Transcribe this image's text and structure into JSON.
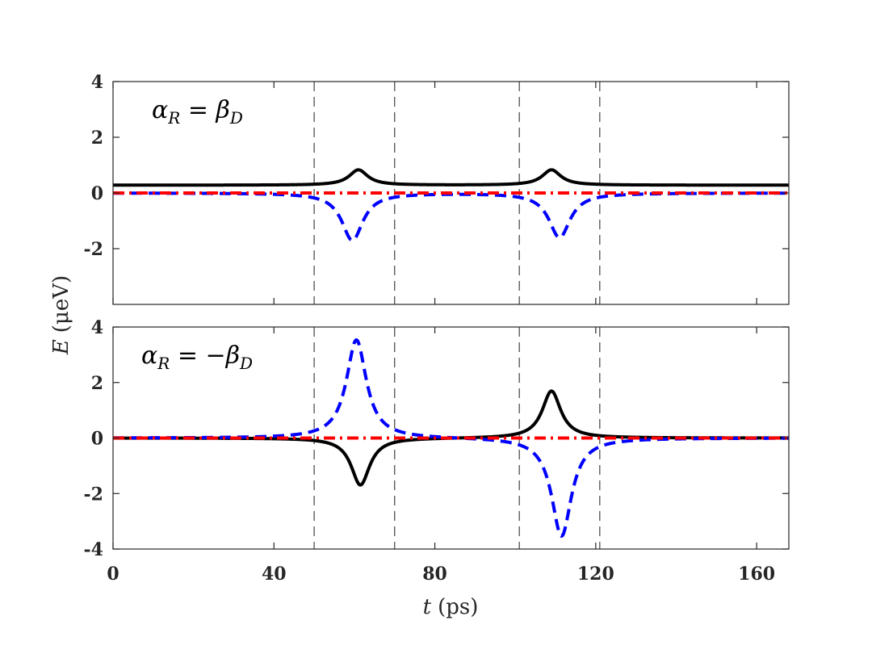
{
  "chart_data": {
    "type": "line",
    "shared_x": {
      "label_var": "t",
      "label_unit": "(ps)",
      "lim": [
        0,
        168
      ],
      "ticks": [
        0,
        40,
        80,
        120,
        160
      ]
    },
    "shared_y": {
      "label_var": "E",
      "label_unit": "(μeV)"
    },
    "vlines": [
      50,
      70,
      101,
      121
    ],
    "panels": [
      {
        "annotation": "αR = βD",
        "ylim": [
          -4,
          4
        ],
        "yticks": [
          -2,
          0,
          2,
          4
        ],
        "series": [
          {
            "name": "solid",
            "color": "#000000",
            "dash": "solid",
            "baseline": 0.28,
            "pulses": [
              {
                "amp": 0.55,
                "center": 61,
                "width": 2.8
              },
              {
                "amp": 0.55,
                "center": 109,
                "width": 2.8
              }
            ]
          },
          {
            "name": "dashed",
            "color": "#0000ff",
            "dash": "dashed",
            "baseline": 0,
            "pulses": [
              {
                "amp": -1.7,
                "center": 59.5,
                "width": 3.2
              },
              {
                "amp": -1.6,
                "center": 111,
                "width": 3.2
              }
            ]
          },
          {
            "name": "dash-dot",
            "color": "#ff0000",
            "dash": "dashdot",
            "baseline": 0,
            "pulses": []
          }
        ]
      },
      {
        "annotation": "αR = −βD",
        "ylim": [
          -4,
          4
        ],
        "yticks": [
          -4,
          -2,
          0,
          2,
          4
        ],
        "series": [
          {
            "name": "solid",
            "color": "#000000",
            "dash": "solid",
            "baseline": 0,
            "pulses": [
              {
                "amp": -1.7,
                "center": 61.5,
                "width": 2.8
              },
              {
                "amp": 1.7,
                "center": 109,
                "width": 2.8
              }
            ]
          },
          {
            "name": "dashed",
            "color": "#0000ff",
            "dash": "dashed",
            "baseline": 0,
            "pulses": [
              {
                "amp": 3.55,
                "center": 60.5,
                "width": 3.0
              },
              {
                "amp": -3.55,
                "center": 111.5,
                "width": 3.0
              }
            ]
          },
          {
            "name": "dash-dot",
            "color": "#ff0000",
            "dash": "dashdot",
            "baseline": 0,
            "pulses": []
          }
        ]
      }
    ]
  }
}
